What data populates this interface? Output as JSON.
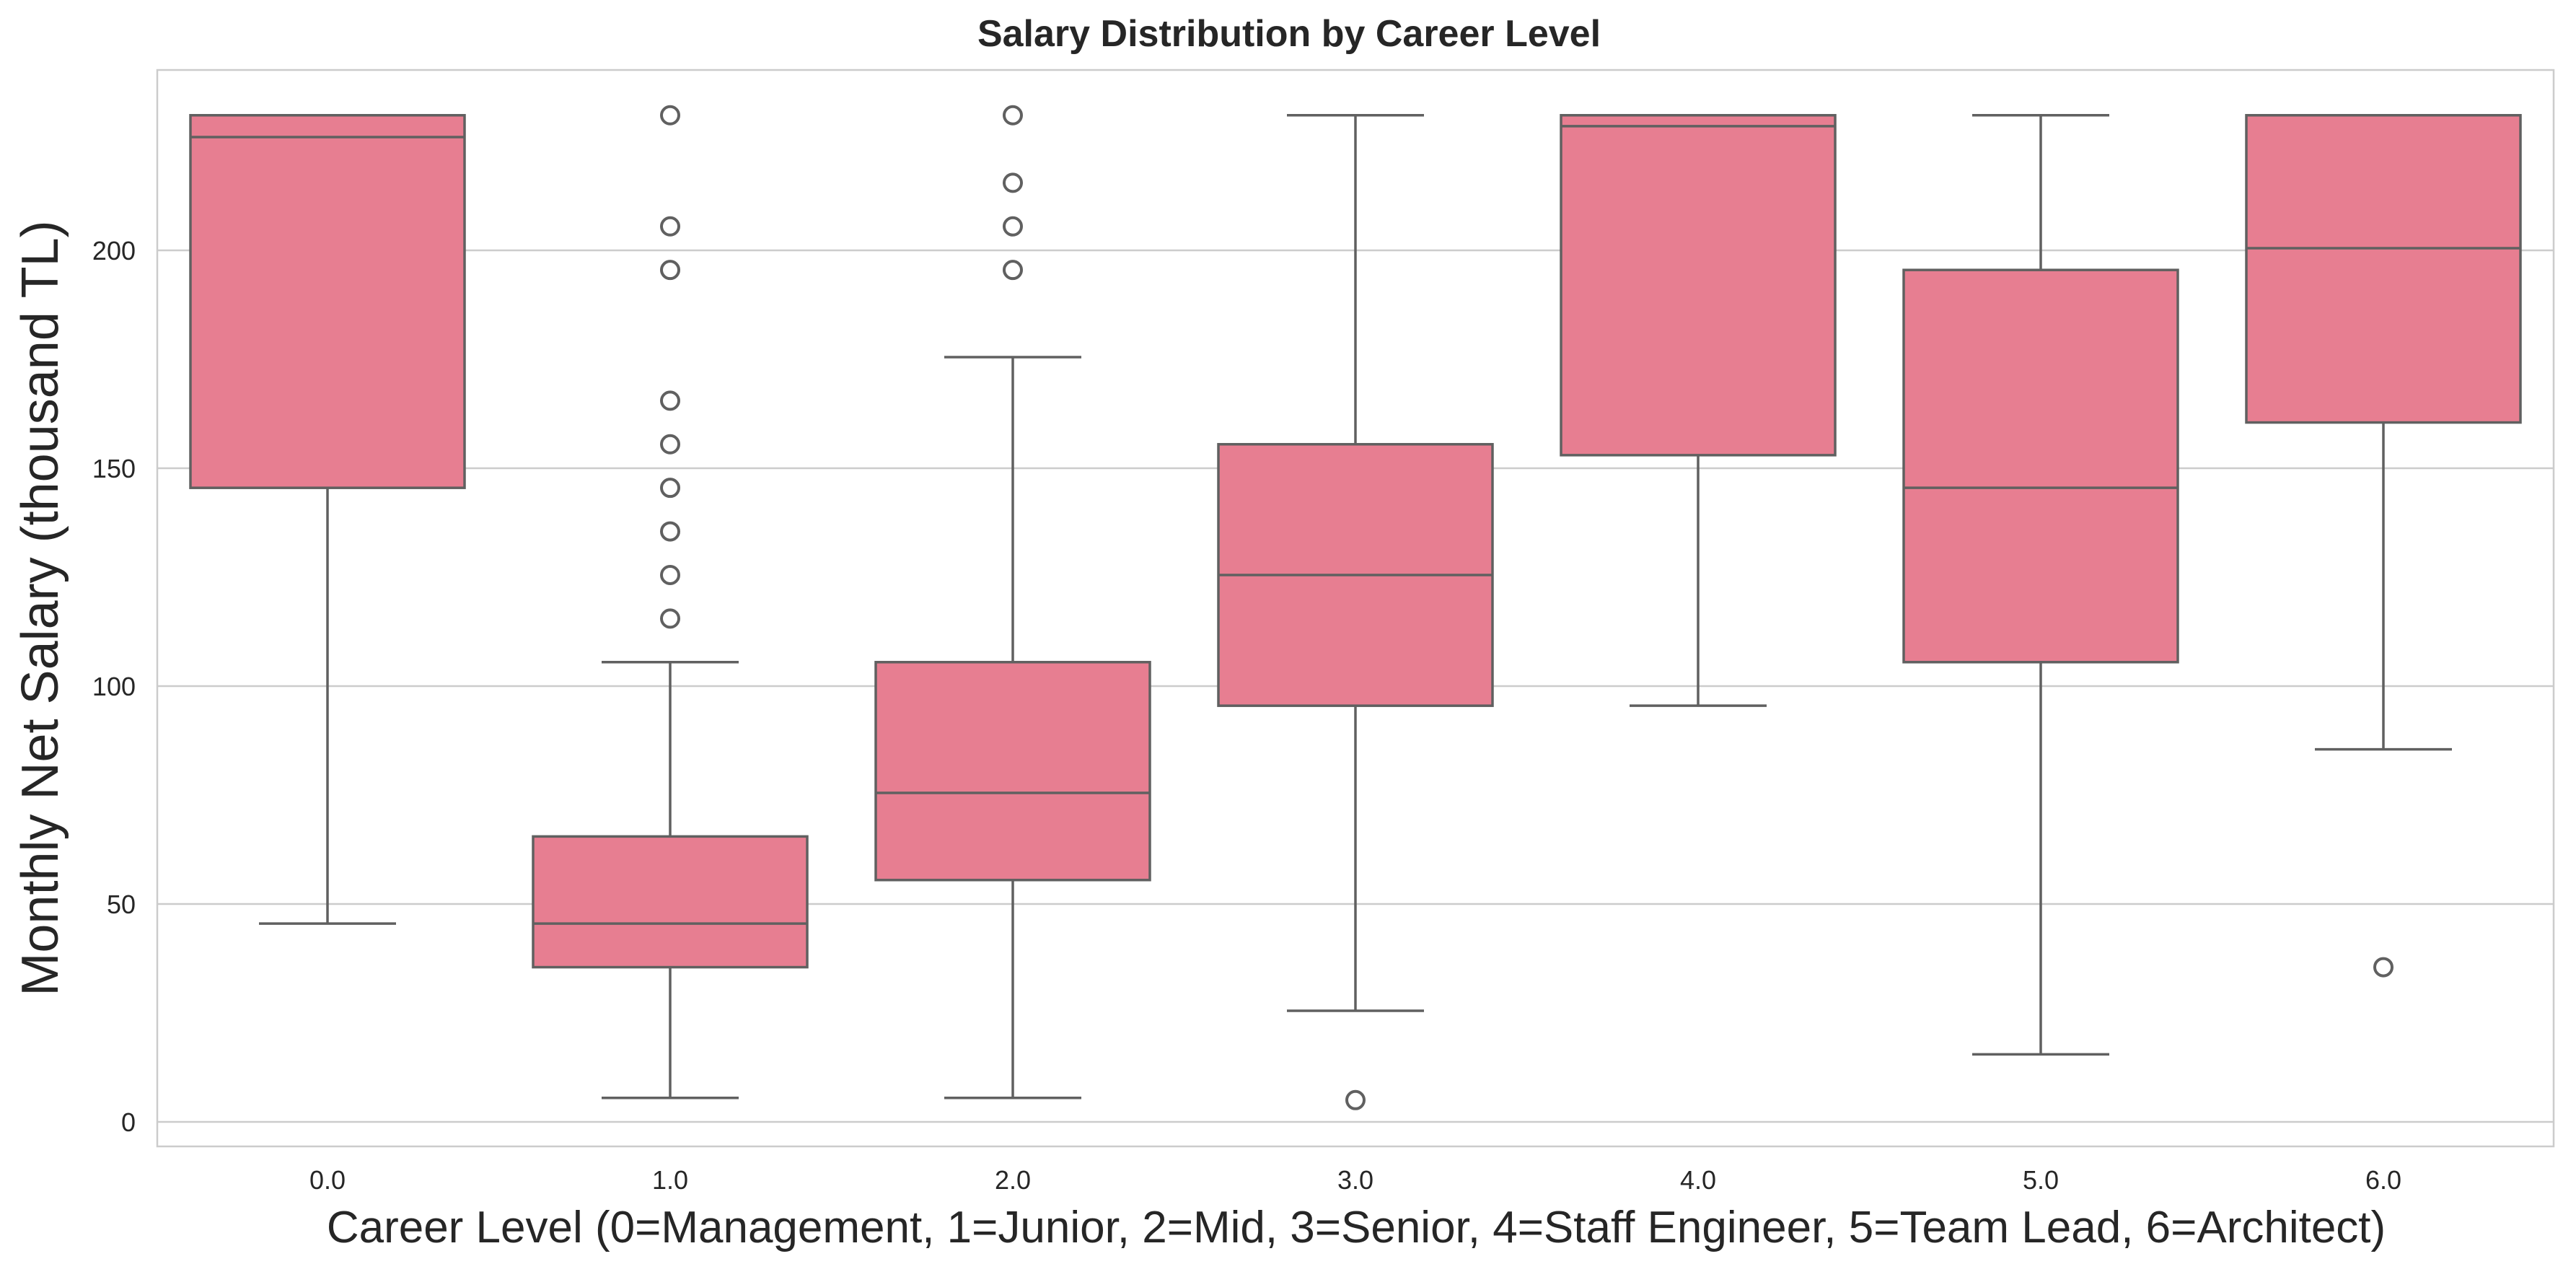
{
  "chart_data": {
    "type": "box",
    "title": "Salary Distribution by Career Level",
    "xlabel": "Career Level (0=Management, 1=Junior, 2=Mid, 3=Senior, 4=Staff Engineer, 5=Team Lead, 6=Architect)",
    "ylabel": "Monthly Net Salary (thousand TL)",
    "categories": [
      "0.0",
      "1.0",
      "2.0",
      "3.0",
      "4.0",
      "5.0",
      "6.0"
    ],
    "ylim": [
      -5,
      241
    ],
    "yticks": [
      0,
      50,
      100,
      150,
      200
    ],
    "grid": "horizontal",
    "legend": "none",
    "box_color": "#e77e91",
    "line_color": "#606060",
    "boxes": [
      {
        "category": "0.0",
        "whisker_low": 45.5,
        "q1": 145.5,
        "median": 226,
        "q3": 231,
        "whisker_high": 231,
        "outliers": []
      },
      {
        "category": "1.0",
        "whisker_low": 5.5,
        "q1": 35.5,
        "median": 45.5,
        "q3": 65.5,
        "whisker_high": 105.5,
        "outliers": [
          115.5,
          125.5,
          135.5,
          145.5,
          155.5,
          165.5,
          195.5,
          205.5,
          231
        ]
      },
      {
        "category": "2.0",
        "whisker_low": 5.5,
        "q1": 55.5,
        "median": 75.5,
        "q3": 105.5,
        "whisker_high": 175.5,
        "outliers": [
          195.5,
          205.5,
          215.5,
          231
        ]
      },
      {
        "category": "3.0",
        "whisker_low": 25.5,
        "q1": 95.5,
        "median": 125.5,
        "q3": 155.5,
        "whisker_high": 231,
        "outliers": [
          5
        ]
      },
      {
        "category": "4.0",
        "whisker_low": 95.5,
        "q1": 153,
        "median": 228.5,
        "q3": 231,
        "whisker_high": 231,
        "outliers": []
      },
      {
        "category": "5.0",
        "whisker_low": 15.5,
        "q1": 105.5,
        "median": 145.5,
        "q3": 195.5,
        "whisker_high": 231,
        "outliers": []
      },
      {
        "category": "6.0",
        "whisker_low": 85.5,
        "q1": 160.5,
        "median": 200.5,
        "q3": 231,
        "whisker_high": 231,
        "outliers": [
          35.5
        ]
      }
    ]
  }
}
